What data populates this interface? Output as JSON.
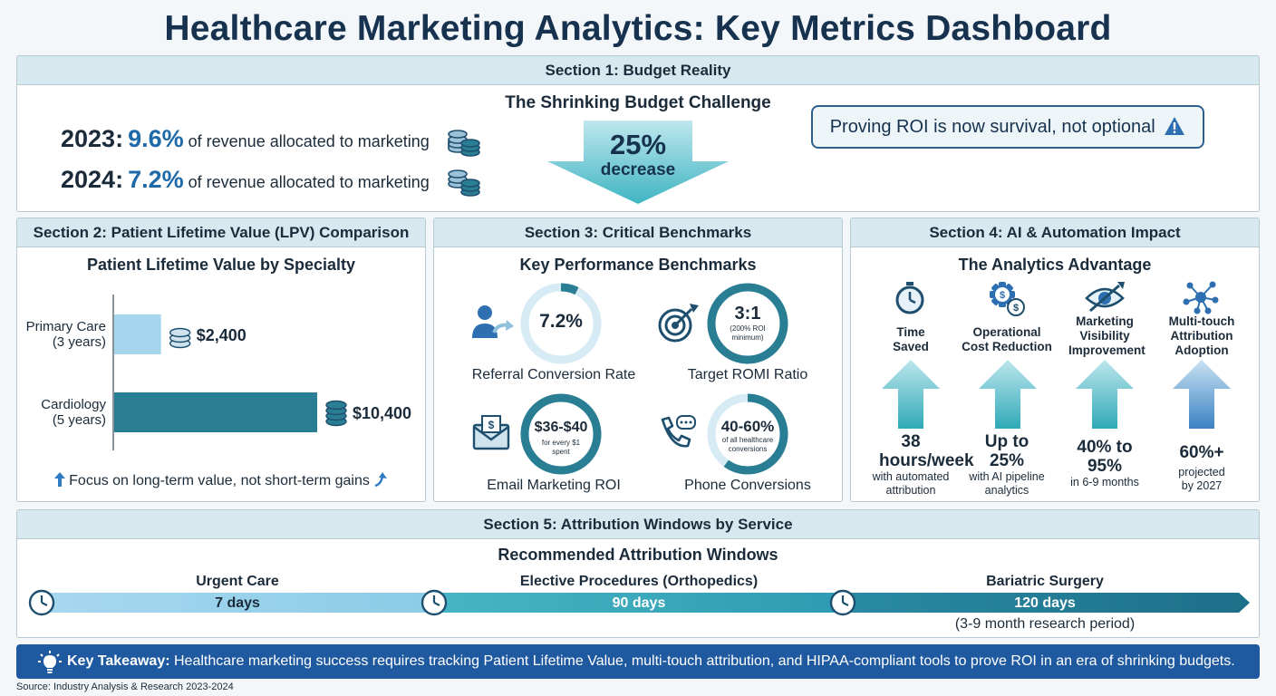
{
  "title": "Healthcare Marketing Analytics: Key Metrics Dashboard",
  "section1": {
    "header": "Section 1: Budget Reality",
    "subtitle": "The Shrinking Budget Challenge",
    "rows": [
      {
        "year": "2023:",
        "pct": "9.6%",
        "text": "of revenue allocated to marketing"
      },
      {
        "year": "2024:",
        "pct": "7.2%",
        "text": "of revenue allocated to marketing"
      }
    ],
    "decrease_value": "25%",
    "decrease_label": "decrease",
    "callout": "Proving ROI is now survival, not optional"
  },
  "section2": {
    "header": "Section 2: Patient Lifetime Value (LPV) Comparison",
    "subtitle": "Patient Lifetime Value by Specialty",
    "note": "Focus on long-term value, not short-term gains"
  },
  "chart_data": {
    "type": "bar",
    "orientation": "horizontal",
    "title": "Patient Lifetime Value by Specialty",
    "categories": [
      "Primary Care (3 years)",
      "Cardiology (5 years)"
    ],
    "category_lines": [
      [
        "Primary Care",
        "(3 years)"
      ],
      [
        "Cardiology",
        "(5 years)"
      ]
    ],
    "values": [
      2400,
      10400
    ],
    "value_labels": [
      "$2,400",
      "$10,400"
    ],
    "colors": [
      "#a6d6ee",
      "#2a7e93"
    ],
    "grid": false
  },
  "section3": {
    "header": "Section 3: Critical Benchmarks",
    "subtitle": "Key Performance Benchmarks",
    "items": [
      {
        "label": "Referral Conversion Rate",
        "value": "7.2%",
        "sub": "",
        "fill": 0.072
      },
      {
        "label": "Target ROMI Ratio",
        "value": "3:1",
        "sub": "(200% ROI minimum)",
        "fill": 1.0
      },
      {
        "label": "Email Marketing ROI",
        "value": "$36-$40",
        "sub": "for every $1 spent",
        "fill": 1.0
      },
      {
        "label": "Phone Conversions",
        "value": "40-60%",
        "sub": "of all healthcare conversions",
        "fill": 0.6
      }
    ]
  },
  "section4": {
    "header": "Section 4: AI & Automation Impact",
    "subtitle": "The Analytics Advantage",
    "items": [
      {
        "label": "Time Saved",
        "main": "38 hours/week",
        "sub": "with automated attribution",
        "icon": "stopwatch-icon"
      },
      {
        "label": "Operational Cost Reduction",
        "main": "Up to 25%",
        "sub": "with AI pipeline analytics",
        "icon": "gear-dollar-icon"
      },
      {
        "label": "Marketing Visibility Improvement",
        "main": "40% to 95%",
        "sub": "in 6-9 months",
        "icon": "eye-icon"
      },
      {
        "label": "Multi-touch Attribution Adoption",
        "main": "60%+",
        "sub": "projected by 2027",
        "icon": "network-icon"
      }
    ]
  },
  "section5": {
    "header": "Section 5: Attribution Windows by Service",
    "subtitle": "Recommended Attribution Windows",
    "windows": [
      {
        "name": "Urgent Care",
        "days": "7 days"
      },
      {
        "name": "Elective Procedures (Orthopedics)",
        "days": "90 days"
      },
      {
        "name": "Bariatric Surgery",
        "days": "120 days"
      }
    ],
    "note": "(3-9 month research period)"
  },
  "takeaway": {
    "lead": "Key Takeaway:",
    "text": "Healthcare marketing success requires tracking Patient Lifetime Value, multi-touch attribution, and HIPAA-compliant tools to prove ROI in an era of shrinking budgets."
  },
  "source": "Source: Industry Analysis & Research 2023-2024",
  "colors": {
    "title": "#16324f",
    "accent_blue": "#1e6aa8",
    "teal_dark": "#2a7e93",
    "teal_light": "#a6d6ee",
    "header_bg": "#d6e9ef",
    "takeaway_bg": "#1f5aa0"
  }
}
